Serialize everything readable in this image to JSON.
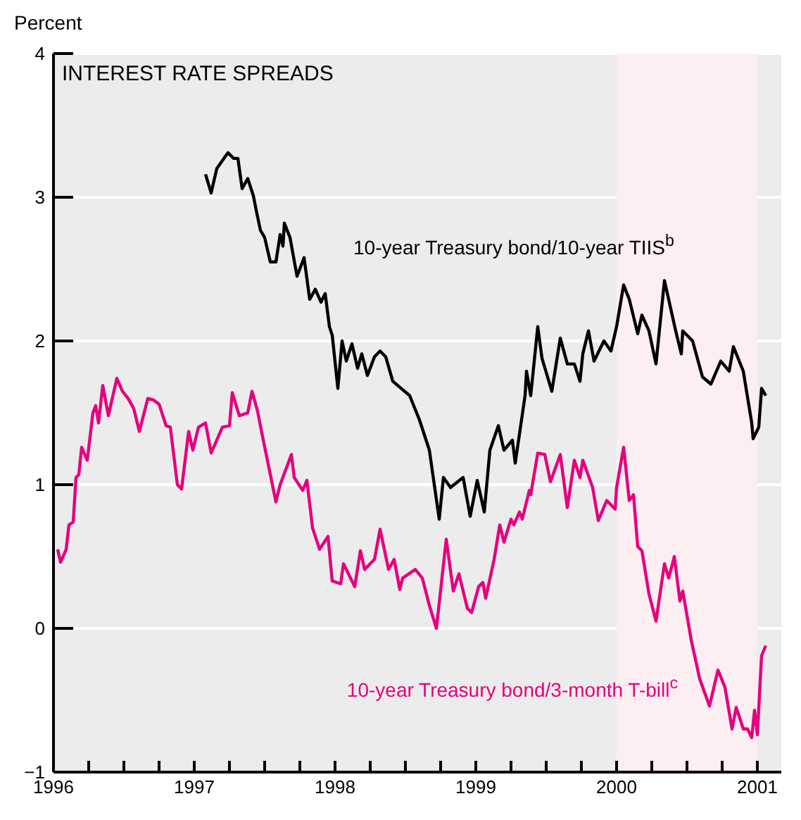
{
  "chart_data": {
    "type": "line",
    "title": "INTEREST RATE SPREADS",
    "ylabel": "Percent",
    "xlim": [
      1996,
      2001.17
    ],
    "xticks": [
      1996,
      {
        "value": 1996.25,
        "label": null
      },
      {
        "value": 1996.5,
        "label": null
      },
      {
        "value": 1996.75,
        "label": null
      },
      1997,
      {
        "value": 1997.25,
        "label": null
      },
      {
        "value": 1997.5,
        "label": null
      },
      {
        "value": 1997.75,
        "label": null
      },
      1998,
      {
        "value": 1998.25,
        "label": null
      },
      {
        "value": 1998.5,
        "label": null
      },
      {
        "value": 1998.75,
        "label": null
      },
      1999,
      {
        "value": 1999.25,
        "label": null
      },
      {
        "value": 1999.5,
        "label": null
      },
      {
        "value": 1999.75,
        "label": null
      },
      2000,
      {
        "value": 2000.25,
        "label": null
      },
      {
        "value": 2000.5,
        "label": null
      },
      {
        "value": 2000.75,
        "label": null
      },
      2001
    ],
    "ylim": [
      -1,
      4
    ],
    "yticks": [
      {
        "value": -1,
        "label": "−1"
      },
      0,
      1,
      2,
      3,
      4
    ],
    "grid": "y",
    "legend": false,
    "marker": "none",
    "line_style": "solid",
    "bands": [
      {
        "axis": "x",
        "from": 2000,
        "to": 2001,
        "color": "#fdeef1"
      }
    ],
    "series": [
      {
        "name": "10-year Treasury bond/10-year TIIS$^{b}$",
        "color": "#000000",
        "x": [
          1997.08,
          1997.12,
          1997.16,
          1997.21,
          1997.24,
          1997.28,
          1997.31,
          1997.34,
          1997.38,
          1997.42,
          1997.44,
          1997.47,
          1997.5,
          1997.54,
          1997.58,
          1997.61,
          1997.63,
          1997.64,
          1997.68,
          1997.73,
          1997.78,
          1997.82,
          1997.86,
          1997.9,
          1997.93,
          1997.96,
          1997.98,
          1998.02,
          1998.05,
          1998.08,
          1998.12,
          1998.16,
          1998.19,
          1998.23,
          1998.28,
          1998.32,
          1998.36,
          1998.41,
          1998.47,
          1998.53,
          1998.6,
          1998.67,
          1998.74,
          1998.77,
          1998.82,
          1998.91,
          1998.96,
          1999.01,
          1999.06,
          1999.1,
          1999.16,
          1999.2,
          1999.26,
          1999.28,
          1999.35,
          1999.36,
          1999.39,
          1999.44,
          1999.47,
          1999.54,
          1999.6,
          1999.65,
          1999.7,
          1999.74,
          1999.76,
          1999.8,
          1999.84,
          1999.91,
          1999.96,
          2000,
          2000.05,
          2000.09,
          2000.15,
          2000.18,
          2000.23,
          2000.28,
          2000.34,
          2000.42,
          2000.46,
          2000.47,
          2000.54,
          2000.61,
          2000.67,
          2000.74,
          2000.8,
          2000.83,
          2000.9,
          2000.96,
          2000.97,
          2001.01,
          2001.03,
          2001.06
        ],
        "values": [
          3.16,
          3.03,
          3.2,
          3.27,
          3.31,
          3.27,
          3.27,
          3.06,
          3.13,
          3.01,
          2.91,
          2.77,
          2.72,
          2.55,
          2.55,
          2.74,
          2.66,
          2.82,
          2.72,
          2.45,
          2.58,
          2.29,
          2.36,
          2.27,
          2.33,
          2.1,
          2.04,
          1.67,
          2.0,
          1.86,
          1.98,
          1.81,
          1.91,
          1.76,
          1.89,
          1.93,
          1.89,
          1.72,
          1.67,
          1.62,
          1.45,
          1.24,
          0.76,
          1.05,
          0.98,
          1.05,
          0.78,
          1.03,
          0.81,
          1.24,
          1.41,
          1.24,
          1.31,
          1.15,
          1.62,
          1.79,
          1.62,
          2.1,
          1.88,
          1.65,
          2.02,
          1.84,
          1.84,
          1.72,
          1.91,
          2.07,
          1.86,
          2.0,
          1.93,
          2.1,
          2.39,
          2.29,
          2.05,
          2.18,
          2.07,
          1.84,
          2.42,
          2.07,
          1.91,
          2.07,
          2.0,
          1.75,
          1.7,
          1.86,
          1.79,
          1.96,
          1.79,
          1.43,
          1.32,
          1.4,
          1.67,
          1.62
        ]
      },
      {
        "name": "10-year Treasury bond/3-month T-bill$^{c}$",
        "color": "#e5007d",
        "x": [
          1996.03,
          1996.05,
          1996.09,
          1996.11,
          1996.14,
          1996.16,
          1996.18,
          1996.2,
          1996.24,
          1996.28,
          1996.3,
          1996.32,
          1996.35,
          1996.39,
          1996.45,
          1996.49,
          1996.53,
          1996.57,
          1996.61,
          1996.67,
          1996.71,
          1996.75,
          1996.8,
          1996.83,
          1996.88,
          1996.91,
          1996.96,
          1996.99,
          1997.03,
          1997.08,
          1997.12,
          1997.2,
          1997.25,
          1997.27,
          1997.32,
          1997.38,
          1997.41,
          1997.45,
          1997.48,
          1997.58,
          1997.61,
          1997.69,
          1997.71,
          1997.77,
          1997.8,
          1997.84,
          1997.89,
          1997.95,
          1997.98,
          1998.04,
          1998.06,
          1998.14,
          1998.18,
          1998.21,
          1998.28,
          1998.32,
          1998.35,
          1998.38,
          1998.42,
          1998.46,
          1998.48,
          1998.57,
          1998.62,
          1998.67,
          1998.72,
          1998.79,
          1998.84,
          1998.88,
          1998.94,
          1998.97,
          1999.02,
          1999.05,
          1999.07,
          1999.13,
          1999.17,
          1999.2,
          1999.25,
          1999.27,
          1999.31,
          1999.33,
          1999.38,
          1999.39,
          1999.44,
          1999.49,
          1999.53,
          1999.6,
          1999.65,
          1999.7,
          1999.74,
          1999.76,
          1999.83,
          1999.87,
          1999.93,
          1999.99,
          2000,
          2000.05,
          2000.09,
          2000.12,
          2000.15,
          2000.18,
          2000.23,
          2000.28,
          2000.34,
          2000.37,
          2000.41,
          2000.45,
          2000.47,
          2000.53,
          2000.59,
          2000.66,
          2000.72,
          2000.77,
          2000.82,
          2000.85,
          2000.9,
          2000.93,
          2000.96,
          2000.98,
          2001,
          2001.03,
          2001.06
        ],
        "values": [
          0.55,
          0.46,
          0.55,
          0.72,
          0.74,
          1.05,
          1.07,
          1.26,
          1.17,
          1.5,
          1.55,
          1.43,
          1.69,
          1.48,
          1.74,
          1.65,
          1.6,
          1.53,
          1.37,
          1.6,
          1.59,
          1.56,
          1.41,
          1.4,
          1.0,
          0.97,
          1.37,
          1.24,
          1.4,
          1.43,
          1.22,
          1.4,
          1.41,
          1.64,
          1.48,
          1.5,
          1.65,
          1.51,
          1.36,
          0.88,
          1.0,
          1.21,
          1.05,
          0.96,
          1.03,
          0.7,
          0.55,
          0.64,
          0.33,
          0.31,
          0.45,
          0.29,
          0.54,
          0.41,
          0.48,
          0.69,
          0.55,
          0.41,
          0.48,
          0.27,
          0.35,
          0.41,
          0.35,
          0.16,
          0.0,
          0.62,
          0.26,
          0.38,
          0.14,
          0.11,
          0.29,
          0.32,
          0.21,
          0.48,
          0.72,
          0.6,
          0.76,
          0.72,
          0.81,
          0.76,
          0.96,
          0.93,
          1.22,
          1.21,
          1.02,
          1.21,
          0.84,
          1.17,
          1.05,
          1.17,
          0.98,
          0.75,
          0.89,
          0.83,
          0.98,
          1.26,
          0.89,
          0.93,
          0.57,
          0.54,
          0.24,
          0.05,
          0.45,
          0.35,
          0.5,
          0.19,
          0.26,
          -0.08,
          -0.35,
          -0.54,
          -0.29,
          -0.41,
          -0.7,
          -0.55,
          -0.7,
          -0.7,
          -0.76,
          -0.57,
          -0.74,
          -0.19,
          -0.12
        ]
      }
    ]
  }
}
